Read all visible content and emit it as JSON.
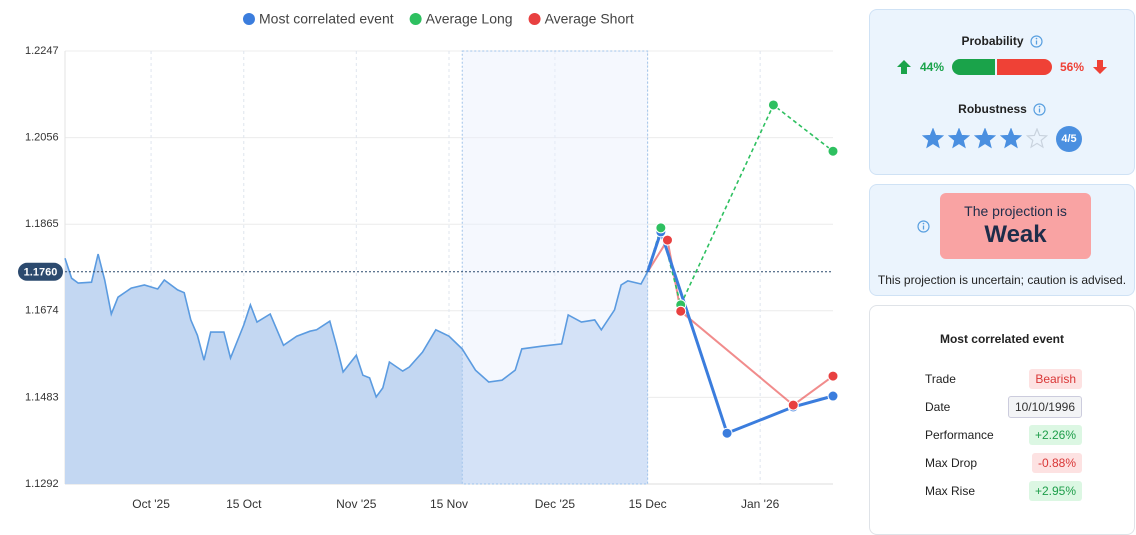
{
  "chart_data": {
    "type": "line",
    "legend": "top",
    "xlim": [
      "2025-09-18",
      "2026-01-12"
    ],
    "xticks": [
      {
        "value": "2025-10-01",
        "label": "Oct '25"
      },
      {
        "value": "2025-10-15",
        "label": "15 Oct"
      },
      {
        "value": "2025-11-01",
        "label": "Nov '25"
      },
      {
        "value": "2025-11-15",
        "label": "15 Nov"
      },
      {
        "value": "2025-12-01",
        "label": "Dec '25"
      },
      {
        "value": "2025-12-15",
        "label": "15 Dec"
      },
      {
        "value": "2026-01-01",
        "label": "Jan '26"
      }
    ],
    "ylim": [
      1.1292,
      1.2247
    ],
    "yticks": [
      1.1292,
      1.1483,
      1.1674,
      1.1865,
      1.2056,
      1.2247
    ],
    "grid": true,
    "reference_line": {
      "value": 1.176,
      "label": "1.1760"
    },
    "highlight": [
      "2025-11-17",
      "2025-12-15"
    ],
    "price": {
      "color": "#5b9be0",
      "x": [
        "2025-09-18",
        "2025-09-19",
        "2025-09-20",
        "2025-09-22",
        "2025-09-23",
        "2025-09-24",
        "2025-09-25",
        "2025-09-26",
        "2025-09-28",
        "2025-09-30",
        "2025-10-02",
        "2025-10-03",
        "2025-10-05",
        "2025-10-06",
        "2025-10-07",
        "2025-10-08",
        "2025-10-09",
        "2025-10-10",
        "2025-10-12",
        "2025-10-13",
        "2025-10-15",
        "2025-10-16",
        "2025-10-17",
        "2025-10-19",
        "2025-10-21",
        "2025-10-23",
        "2025-10-25",
        "2025-10-26",
        "2025-10-28",
        "2025-10-29",
        "2025-10-30",
        "2025-11-01",
        "2025-11-02",
        "2025-11-03",
        "2025-11-04",
        "2025-11-05",
        "2025-11-06",
        "2025-11-08",
        "2025-11-09",
        "2025-11-11",
        "2025-11-13",
        "2025-11-15",
        "2025-11-17",
        "2025-11-19",
        "2025-11-21",
        "2025-11-23",
        "2025-11-25",
        "2025-11-26",
        "2025-11-29",
        "2025-12-02",
        "2025-12-03",
        "2025-12-05",
        "2025-12-07",
        "2025-12-08",
        "2025-12-10",
        "2025-12-11",
        "2025-12-12",
        "2025-12-14",
        "2025-12-15"
      ],
      "values": [
        1.179,
        1.1746,
        1.1735,
        1.1737,
        1.1799,
        1.1742,
        1.1667,
        1.1704,
        1.1724,
        1.1731,
        1.1722,
        1.1742,
        1.172,
        1.1714,
        1.1654,
        1.162,
        1.1565,
        1.1627,
        1.1627,
        1.157,
        1.1643,
        1.1687,
        1.1649,
        1.1667,
        1.1598,
        1.1618,
        1.1629,
        1.1632,
        1.1651,
        1.1598,
        1.1539,
        1.1576,
        1.1532,
        1.1526,
        1.1484,
        1.1504,
        1.1561,
        1.1541,
        1.155,
        1.1583,
        1.1632,
        1.1618,
        1.159,
        1.1543,
        1.1517,
        1.1521,
        1.1543,
        1.159,
        1.1596,
        1.1601,
        1.1665,
        1.1649,
        1.1654,
        1.1632,
        1.1676,
        1.1731,
        1.174,
        1.1733,
        1.176
      ]
    },
    "series": [
      {
        "name": "Most correlated event",
        "color": "#3b7ddd",
        "line_style": "solid",
        "x": [
          "2025-12-15",
          "2025-12-17",
          "2025-12-27",
          "2026-01-06",
          "2026-01-12"
        ],
        "values": [
          1.176,
          1.1848,
          1.1404,
          1.1462,
          1.1486
        ]
      },
      {
        "name": "Average Long",
        "color": "#2ec060",
        "line_style": "dashed",
        "x": [
          "2025-12-15",
          "2025-12-17",
          "2025-12-20",
          "2026-01-03",
          "2026-01-12"
        ],
        "values": [
          1.176,
          1.1857,
          1.1687,
          1.2128,
          1.2026
        ]
      },
      {
        "name": "Average Short",
        "color": "#e84040",
        "line_style": "faded",
        "x": [
          "2025-12-15",
          "2025-12-18",
          "2025-12-20",
          "2026-01-06",
          "2026-01-12"
        ],
        "values": [
          1.176,
          1.183,
          1.1673,
          1.1466,
          1.153
        ]
      }
    ]
  },
  "probability": {
    "title": "Probability",
    "values": [
      44,
      56
    ],
    "value_labels": [
      "44%",
      "56%"
    ]
  },
  "robustness": {
    "title": "Robustness",
    "value": 4,
    "max": 5,
    "value_label": "4/5"
  },
  "projection": {
    "prefix": "The projection is",
    "strength": "Weak",
    "note": "This projection is uncertain; caution is advised."
  },
  "event": {
    "title": "Most correlated event",
    "rows": [
      [
        "Trade",
        "Bearish"
      ],
      [
        "Date",
        "10/10/1996"
      ],
      [
        "Performance",
        "+2.26%"
      ],
      [
        "Max Drop",
        "-0.88%"
      ],
      [
        "Max Rise",
        "+2.95%"
      ]
    ]
  }
}
